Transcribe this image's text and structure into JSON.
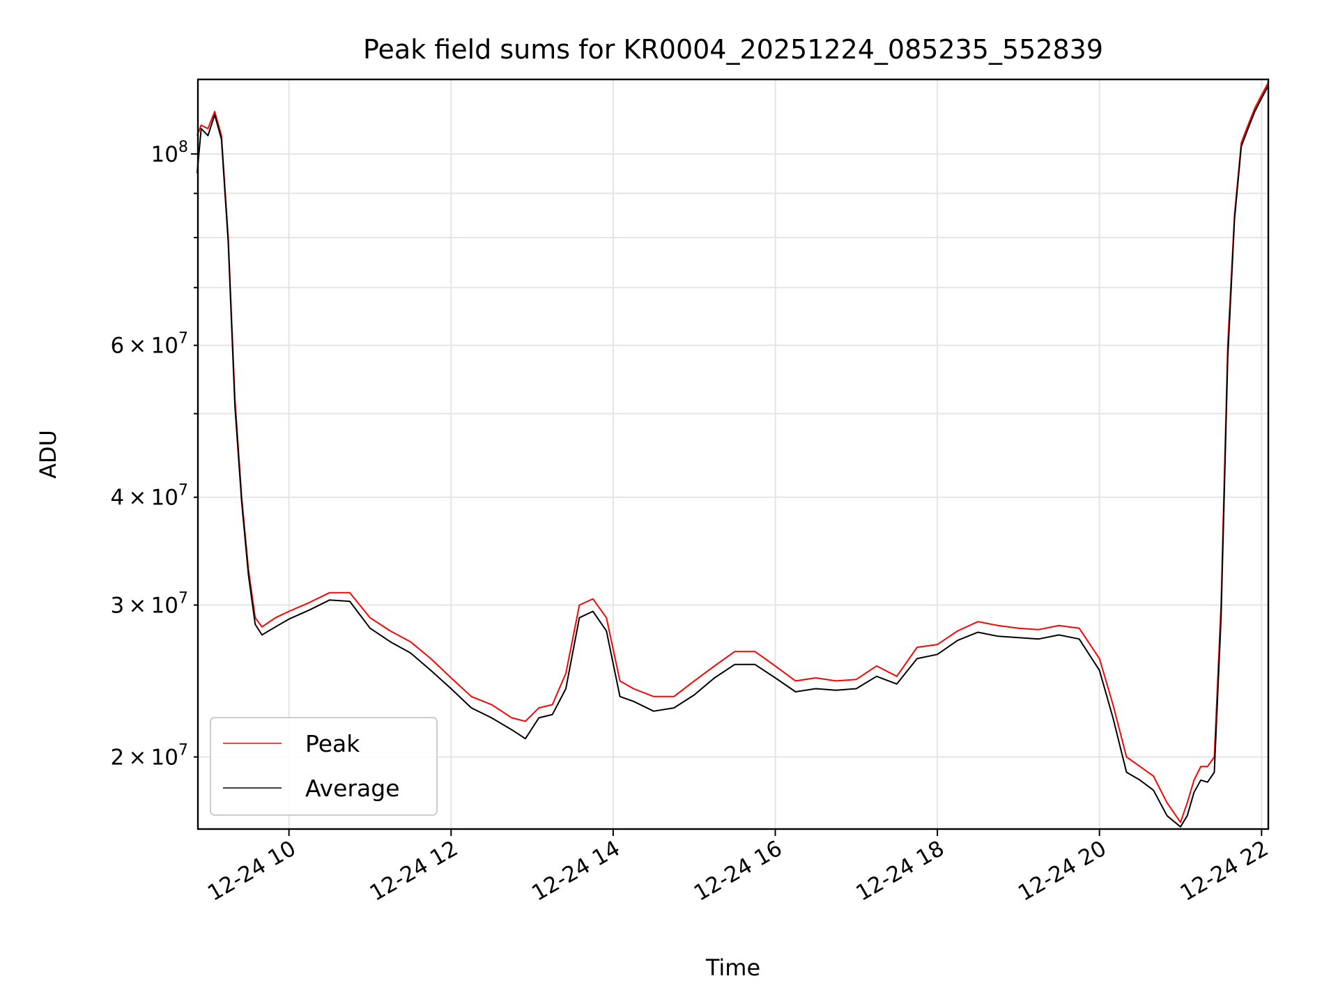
{
  "chart_data": {
    "type": "line",
    "title": "Peak field sums for KR0004_20251224_085235_552839",
    "xlabel": "Time",
    "ylabel": "ADU",
    "x_range": [
      "2025-12-24T08:52:35",
      "2025-12-24T22:05:00"
    ],
    "ylim": [
      16500000,
      122000000
    ],
    "yscale": "log",
    "grid": true,
    "legend_position": "lower-left",
    "x_ticks": [
      {
        "value": "2025-12-24T10:00",
        "label": "12-24 10"
      },
      {
        "value": "2025-12-24T12:00",
        "label": "12-24 12"
      },
      {
        "value": "2025-12-24T14:00",
        "label": "12-24 14"
      },
      {
        "value": "2025-12-24T16:00",
        "label": "12-24 16"
      },
      {
        "value": "2025-12-24T18:00",
        "label": "12-24 18"
      },
      {
        "value": "2025-12-24T20:00",
        "label": "12-24 20"
      },
      {
        "value": "2025-12-24T22:00",
        "label": "12-24 22"
      }
    ],
    "y_major_ticks": [
      {
        "value": 100000000,
        "mantissa": "",
        "exponent": "8"
      }
    ],
    "y_minor_ticks": [
      {
        "value": 20000000,
        "mantissa": "2",
        "exponent": "7"
      },
      {
        "value": 30000000,
        "mantissa": "3",
        "exponent": "7"
      },
      {
        "value": 40000000,
        "mantissa": "4",
        "exponent": "7"
      },
      {
        "value": 50000000,
        "mantissa": "",
        "exponent": ""
      },
      {
        "value": 60000000,
        "mantissa": "6",
        "exponent": "7"
      },
      {
        "value": 70000000,
        "mantissa": "",
        "exponent": ""
      },
      {
        "value": 80000000,
        "mantissa": "",
        "exponent": ""
      },
      {
        "value": 90000000,
        "mantissa": "",
        "exponent": ""
      }
    ],
    "tick_multiply": "×",
    "tick_base": "10",
    "series": [
      {
        "name": "Peak",
        "color": "#ff0000",
        "x": [
          "2025-12-24T08:52",
          "2025-12-24T08:55",
          "2025-12-24T09:00",
          "2025-12-24T09:05",
          "2025-12-24T09:10",
          "2025-12-24T09:15",
          "2025-12-24T09:20",
          "2025-12-24T09:25",
          "2025-12-24T09:30",
          "2025-12-24T09:35",
          "2025-12-24T09:40",
          "2025-12-24T09:50",
          "2025-12-24T10:00",
          "2025-12-24T10:15",
          "2025-12-24T10:30",
          "2025-12-24T10:45",
          "2025-12-24T11:00",
          "2025-12-24T11:15",
          "2025-12-24T11:30",
          "2025-12-24T11:45",
          "2025-12-24T12:00",
          "2025-12-24T12:15",
          "2025-12-24T12:30",
          "2025-12-24T12:45",
          "2025-12-24T12:55",
          "2025-12-24T13:05",
          "2025-12-24T13:15",
          "2025-12-24T13:25",
          "2025-12-24T13:35",
          "2025-12-24T13:45",
          "2025-12-24T13:55",
          "2025-12-24T14:05",
          "2025-12-24T14:15",
          "2025-12-24T14:30",
          "2025-12-24T14:45",
          "2025-12-24T15:00",
          "2025-12-24T15:15",
          "2025-12-24T15:30",
          "2025-12-24T15:45",
          "2025-12-24T16:00",
          "2025-12-24T16:15",
          "2025-12-24T16:30",
          "2025-12-24T16:45",
          "2025-12-24T17:00",
          "2025-12-24T17:15",
          "2025-12-24T17:30",
          "2025-12-24T17:45",
          "2025-12-24T18:00",
          "2025-12-24T18:15",
          "2025-12-24T18:30",
          "2025-12-24T18:45",
          "2025-12-24T19:00",
          "2025-12-24T19:15",
          "2025-12-24T19:30",
          "2025-12-24T19:45",
          "2025-12-24T20:00",
          "2025-12-24T20:10",
          "2025-12-24T20:20",
          "2025-12-24T20:30",
          "2025-12-24T20:40",
          "2025-12-24T20:50",
          "2025-12-24T21:00",
          "2025-12-24T21:05",
          "2025-12-24T21:10",
          "2025-12-24T21:15",
          "2025-12-24T21:20",
          "2025-12-24T21:25",
          "2025-12-24T21:30",
          "2025-12-24T21:35",
          "2025-12-24T21:40",
          "2025-12-24T21:45",
          "2025-12-24T21:50",
          "2025-12-24T21:55",
          "2025-12-24T22:00",
          "2025-12-24T22:05"
        ],
        "values": [
          105000000,
          108000000,
          107000000,
          112000000,
          105000000,
          80000000,
          52000000,
          40000000,
          33000000,
          29000000,
          28300000,
          29000000,
          29500000,
          30200000,
          31000000,
          31000000,
          29000000,
          28000000,
          27200000,
          26000000,
          24700000,
          23500000,
          23000000,
          22200000,
          22000000,
          22800000,
          23000000,
          25000000,
          30000000,
          30500000,
          29000000,
          24500000,
          24000000,
          23500000,
          23500000,
          24500000,
          25500000,
          26500000,
          26500000,
          25500000,
          24500000,
          24700000,
          24500000,
          24600000,
          25500000,
          24800000,
          26800000,
          27000000,
          28000000,
          28700000,
          28400000,
          28200000,
          28100000,
          28400000,
          28200000,
          26000000,
          23000000,
          20000000,
          19500000,
          19000000,
          17700000,
          16800000,
          17700000,
          18800000,
          19500000,
          19500000,
          20000000,
          30000000,
          60000000,
          85000000,
          103000000,
          108000000,
          113000000,
          117000000,
          121000000
        ]
      },
      {
        "name": "Average",
        "color": "#000000",
        "x": [
          "2025-12-24T08:52",
          "2025-12-24T08:55",
          "2025-12-24T09:00",
          "2025-12-24T09:05",
          "2025-12-24T09:10",
          "2025-12-24T09:15",
          "2025-12-24T09:20",
          "2025-12-24T09:25",
          "2025-12-24T09:30",
          "2025-12-24T09:35",
          "2025-12-24T09:40",
          "2025-12-24T09:50",
          "2025-12-24T10:00",
          "2025-12-24T10:15",
          "2025-12-24T10:30",
          "2025-12-24T10:45",
          "2025-12-24T11:00",
          "2025-12-24T11:15",
          "2025-12-24T11:30",
          "2025-12-24T11:45",
          "2025-12-24T12:00",
          "2025-12-24T12:15",
          "2025-12-24T12:30",
          "2025-12-24T12:45",
          "2025-12-24T12:55",
          "2025-12-24T13:05",
          "2025-12-24T13:15",
          "2025-12-24T13:25",
          "2025-12-24T13:35",
          "2025-12-24T13:45",
          "2025-12-24T13:55",
          "2025-12-24T14:05",
          "2025-12-24T14:15",
          "2025-12-24T14:30",
          "2025-12-24T14:45",
          "2025-12-24T15:00",
          "2025-12-24T15:15",
          "2025-12-24T15:30",
          "2025-12-24T15:45",
          "2025-12-24T16:00",
          "2025-12-24T16:15",
          "2025-12-24T16:30",
          "2025-12-24T16:45",
          "2025-12-24T17:00",
          "2025-12-24T17:15",
          "2025-12-24T17:30",
          "2025-12-24T17:45",
          "2025-12-24T18:00",
          "2025-12-24T18:15",
          "2025-12-24T18:30",
          "2025-12-24T18:45",
          "2025-12-24T19:00",
          "2025-12-24T19:15",
          "2025-12-24T19:30",
          "2025-12-24T19:45",
          "2025-12-24T20:00",
          "2025-12-24T20:10",
          "2025-12-24T20:20",
          "2025-12-24T20:30",
          "2025-12-24T20:40",
          "2025-12-24T20:50",
          "2025-12-24T21:00",
          "2025-12-24T21:05",
          "2025-12-24T21:10",
          "2025-12-24T21:15",
          "2025-12-24T21:20",
          "2025-12-24T21:25",
          "2025-12-24T21:30",
          "2025-12-24T21:35",
          "2025-12-24T21:40",
          "2025-12-24T21:45",
          "2025-12-24T21:50",
          "2025-12-24T21:55",
          "2025-12-24T22:00",
          "2025-12-24T22:05"
        ],
        "values": [
          95000000,
          107000000,
          105000000,
          111000000,
          104000000,
          79000000,
          51000000,
          39500000,
          32500000,
          28500000,
          27700000,
          28300000,
          28900000,
          29600000,
          30400000,
          30300000,
          28200000,
          27200000,
          26400000,
          25200000,
          24000000,
          22800000,
          22200000,
          21500000,
          21000000,
          22200000,
          22400000,
          24000000,
          29000000,
          29500000,
          28000000,
          23500000,
          23200000,
          22600000,
          22800000,
          23600000,
          24700000,
          25600000,
          25600000,
          24700000,
          23800000,
          24000000,
          23900000,
          24000000,
          24800000,
          24300000,
          26000000,
          26300000,
          27300000,
          27900000,
          27600000,
          27500000,
          27400000,
          27700000,
          27400000,
          25200000,
          22200000,
          19200000,
          18800000,
          18300000,
          17100000,
          16600000,
          17100000,
          18200000,
          18800000,
          18700000,
          19200000,
          29000000,
          58000000,
          84000000,
          102000000,
          107000000,
          112000000,
          116000000,
          120000000
        ]
      }
    ]
  }
}
